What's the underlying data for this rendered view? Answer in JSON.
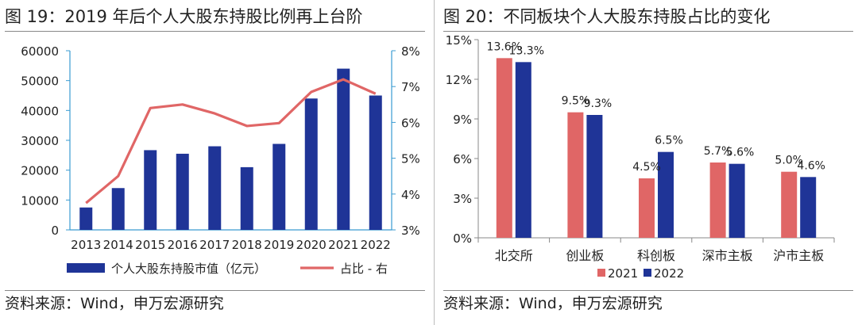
{
  "left": {
    "title": "图 19：2019 年后个人大股东持股比例再上台阶",
    "source": "资料来源：Wind，申万宏源研究",
    "chart_data": {
      "type": "bar+line",
      "categories": [
        "2013",
        "2014",
        "2015",
        "2016",
        "2017",
        "2018",
        "2019",
        "2020",
        "2021",
        "2022"
      ],
      "series": [
        {
          "name": "个人大股东持股市值（亿元）",
          "type": "bar",
          "axis": "left",
          "values": [
            7500,
            14000,
            26700,
            25500,
            28000,
            21000,
            28800,
            44000,
            54000,
            45000
          ]
        },
        {
          "name": "占比 - 右",
          "type": "line",
          "axis": "right",
          "values": [
            3.75,
            4.5,
            6.4,
            6.5,
            6.25,
            5.9,
            5.98,
            6.85,
            7.2,
            6.8
          ]
        }
      ],
      "y_left": {
        "lim": [
          0,
          60000
        ],
        "ticks": [
          "0",
          "10000",
          "20000",
          "30000",
          "40000",
          "50000",
          "60000"
        ]
      },
      "y_right": {
        "lim": [
          3,
          8
        ],
        "ticks": [
          "3%",
          "4%",
          "5%",
          "6%",
          "7%",
          "8%"
        ]
      },
      "colors": {
        "bar": "#1f3497",
        "line": "#e06666",
        "axis": "#3a9bd1"
      },
      "legend_position": "bottom"
    }
  },
  "right": {
    "title": "图 20：不同板块个人大股东持股占比的变化",
    "source": "资料来源：Wind，申万宏源研究",
    "chart_data": {
      "type": "bar",
      "categories": [
        "北交所",
        "创业板",
        "科创板",
        "深市主板",
        "沪市主板"
      ],
      "series": [
        {
          "name": "2021",
          "values": [
            13.6,
            9.5,
            4.5,
            5.7,
            5.0
          ],
          "labels": [
            "13.6%",
            "9.5%",
            "4.5%",
            "5.7%",
            "5.0%"
          ]
        },
        {
          "name": "2022",
          "values": [
            13.3,
            9.3,
            6.5,
            5.6,
            4.6
          ],
          "labels": [
            "13.3%",
            "9.3%",
            "6.5%",
            "5.6%",
            "4.6%"
          ]
        }
      ],
      "ylim": [
        0,
        15
      ],
      "yticks": [
        "0%",
        "3%",
        "6%",
        "9%",
        "12%",
        "15%"
      ],
      "colors": {
        "2021": "#e06666",
        "2022": "#1f3497"
      },
      "legend_position": "bottom"
    }
  }
}
